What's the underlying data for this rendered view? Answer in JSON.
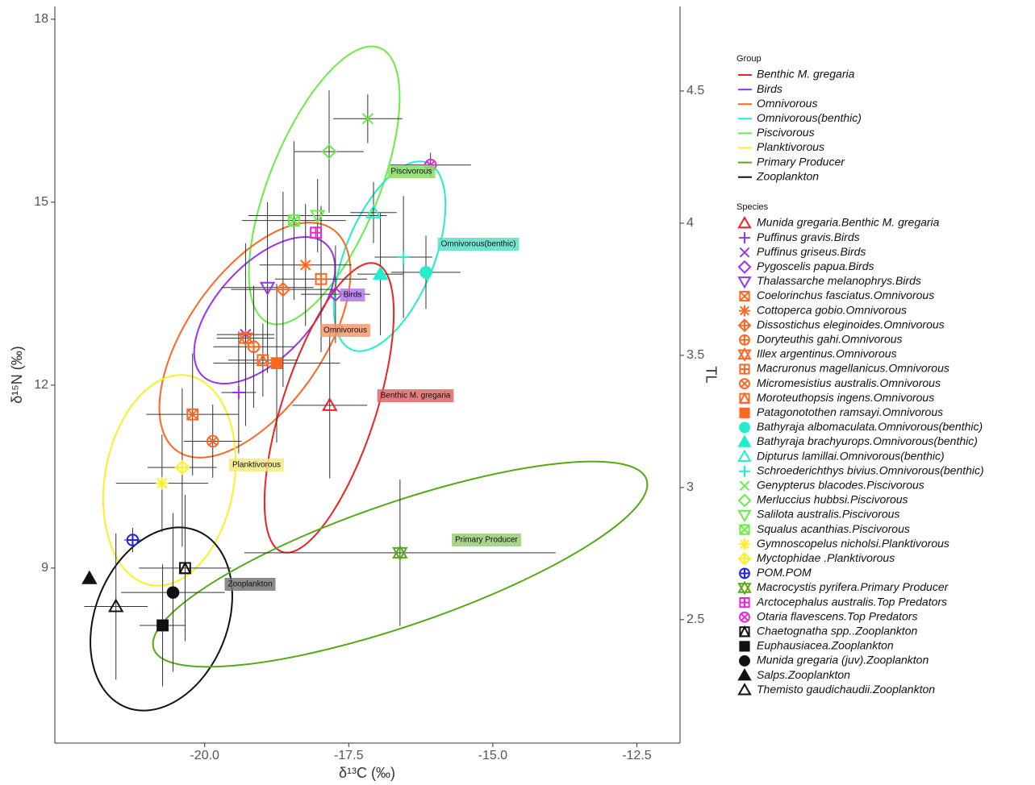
{
  "chart_data": {
    "type": "scatter",
    "x_label": "δ¹³C (‰)",
    "y_label": "δ¹⁵N (‰)",
    "y2_label": "TL",
    "xlim": [
      -22.6,
      -11.75
    ],
    "ylim": [
      6.13,
      18.21
    ],
    "y2lim": [
      2.033,
      4.82
    ],
    "xticks": [
      {
        "value": -20,
        "label": "-20.0"
      },
      {
        "value": -17.5,
        "label": "-17.5"
      },
      {
        "value": -15,
        "label": "-15.0"
      },
      {
        "value": -12.5,
        "label": "-12.5"
      }
    ],
    "yticks": [
      9,
      12,
      15,
      18
    ],
    "y2ticks": [
      2.5,
      3,
      3.5,
      4,
      4.5
    ],
    "group_legend_title": "Group",
    "groups": [
      {
        "name": "Benthic M. gregaria",
        "color": "#ee2222"
      },
      {
        "name": "Birds",
        "color": "#9933ee"
      },
      {
        "name": "Omnivorous",
        "color": "#ff6622"
      },
      {
        "name": "Omnivorous(benthic)",
        "color": "#22eecc"
      },
      {
        "name": "Piscivorous",
        "color": "#66ee44"
      },
      {
        "name": "Planktivorous",
        "color": "#ffee22"
      },
      {
        "name": "Primary Producer",
        "color": "#55aa11"
      },
      {
        "name": "Zooplankton",
        "color": "#111111"
      }
    ],
    "group_labels": [
      "Piscivorous",
      "Omnivorous(benthic)",
      "Birds",
      "Omnivorous",
      "Benthic M. gregaria",
      "Planktivorous",
      "Primary Producer",
      "Zooplankton"
    ],
    "species_legend_title": "Species",
    "series": [
      {
        "name": "Munida gregaria.Benthic M. gregaria",
        "color": "#ee2222",
        "shape": "tri",
        "x": -17.83,
        "y": 11.67,
        "xerr": 0.65,
        "yerr": 1.2
      },
      {
        "name": "Puffinus gravis.Birds",
        "color": "#9933ee",
        "shape": "plus",
        "x": -19.41,
        "y": 11.88,
        "xerr": 0.3,
        "yerr": 1.0
      },
      {
        "name": "Puffinus griseus.Birds",
        "color": "#9933ee",
        "shape": "cross",
        "x": -19.29,
        "y": 12.83,
        "xerr": 0.5,
        "yerr": 1.5
      },
      {
        "name": "Pygoscelis papua.Birds",
        "color": "#9933ee",
        "shape": "diamond",
        "x": -17.73,
        "y": 13.49,
        "xerr": 0.6,
        "yerr": 0.8
      },
      {
        "name": "Thalassarche melanophrys.Birds",
        "color": "#9933ee",
        "shape": "tridown",
        "x": -18.91,
        "y": 13.6,
        "xerr": 0.8,
        "yerr": 1.4
      },
      {
        "name": "Coelorinchus fasciatus.Omnivorous",
        "color": "#ff6622",
        "shape": "squarecross",
        "x": -20.21,
        "y": 11.52,
        "xerr": 0.8,
        "yerr": 1.0
      },
      {
        "name": "Cottoperca gobio.Omnivorous",
        "color": "#ff6622",
        "shape": "asterisk",
        "x": -18.25,
        "y": 13.97,
        "xerr": 0.8,
        "yerr": 1.0
      },
      {
        "name": "Dissostichus eleginoides.Omnivorous",
        "color": "#ff6622",
        "shape": "diamondplus",
        "x": -18.64,
        "y": 13.57,
        "xerr": 0.9,
        "yerr": 1.6
      },
      {
        "name": "Doryteuthis gahi.Omnivorous",
        "color": "#ff6622",
        "shape": "circleplus",
        "x": -19.15,
        "y": 12.63,
        "xerr": 0.7,
        "yerr": 1.0
      },
      {
        "name": "Illex argentinus.Omnivorous",
        "color": "#ff6622",
        "shape": "star",
        "x": -19.29,
        "y": 12.77,
        "xerr": 0.5,
        "yerr": 0.8
      },
      {
        "name": "Macruronus magellanicus.Omnivorous",
        "color": "#ff6622",
        "shape": "squareplus",
        "x": -17.98,
        "y": 13.74,
        "xerr": 0.8,
        "yerr": 1.2
      },
      {
        "name": "Micromesistius australis.Omnivorous",
        "color": "#ff6622",
        "shape": "circlecross",
        "x": -19.86,
        "y": 11.08,
        "xerr": 0.5,
        "yerr": 0.6
      },
      {
        "name": "Moroteuthopsis ingens.Omnivorous",
        "color": "#ff6622",
        "shape": "squaretri",
        "x": -18.99,
        "y": 12.41,
        "xerr": 0.6,
        "yerr": 0.6
      },
      {
        "name": "Patagonotothen ramsayi.Omnivorous",
        "color": "#ff6622",
        "shape": "squarefill",
        "x": -18.75,
        "y": 12.36,
        "xerr": 1.1,
        "yerr": 1.3
      },
      {
        "name": "Bathyraja albomaculata.Omnivorous(benthic)",
        "color": "#22eecc",
        "shape": "circlefill",
        "x": -16.16,
        "y": 13.85,
        "xerr": 0.6,
        "yerr": 0.6
      },
      {
        "name": "Bathyraja brachyurops.Omnivorous(benthic)",
        "color": "#22eecc",
        "shape": "trifill",
        "x": -16.95,
        "y": 13.82,
        "xerr": 0.4,
        "yerr": 1.0
      },
      {
        "name": "Dipturus lamillai.Omnivorous(benthic)",
        "color": "#22eecc",
        "shape": "tri",
        "x": -17.07,
        "y": 14.83,
        "xerr": 0.4,
        "yerr": 0.5
      },
      {
        "name": "Schroederichthys bivius.Omnivorous(benthic)",
        "color": "#22eecc",
        "shape": "plus",
        "x": -16.55,
        "y": 14.1,
        "xerr": 0.5,
        "yerr": 1.0
      },
      {
        "name": "Genypterus blacodes.Piscivorous",
        "color": "#66ee44",
        "shape": "cross",
        "x": -17.17,
        "y": 16.37,
        "xerr": 0.6,
        "yerr": 0.4
      },
      {
        "name": "Merluccius hubbsi.Piscivorous",
        "color": "#66ee44",
        "shape": "diamond",
        "x": -17.84,
        "y": 15.83,
        "xerr": 0.6,
        "yerr": 1.0
      },
      {
        "name": "Salilota australis.Piscivorous",
        "color": "#66ee44",
        "shape": "tridown",
        "x": -18.04,
        "y": 14.78,
        "xerr": 1.2,
        "yerr": 0.6
      },
      {
        "name": "Squalus acanthias.Piscivorous",
        "color": "#66ee44",
        "shape": "squarecross",
        "x": -18.45,
        "y": 14.7,
        "xerr": 0.9,
        "yerr": 1.3
      },
      {
        "name": "Gymnoscopelus nicholsi.Planktivorous",
        "color": "#ffee22",
        "shape": "asterisk",
        "x": -20.74,
        "y": 10.39,
        "xerr": 0.8,
        "yerr": 0.8
      },
      {
        "name": "Myctophidae .Planktivorous",
        "color": "#ffee22",
        "shape": "diamondplus",
        "x": -20.39,
        "y": 10.65,
        "xerr": 0.6,
        "yerr": 1.3
      },
      {
        "name": "POM.POM",
        "color": "#2222ee",
        "shape": "circleplus",
        "x": -21.25,
        "y": 9.46,
        "xerr": 0.15,
        "yerr": 0.2
      },
      {
        "name": "Macrocystis pyrifera.Primary Producer",
        "color": "#55aa11",
        "shape": "star",
        "x": -16.61,
        "y": 9.25,
        "xerr": 2.7,
        "yerr": 1.2
      },
      {
        "name": "Arctocephalus australis.Top Predators",
        "color": "#ee22dd",
        "shape": "squareplus",
        "x": -18.07,
        "y": 14.5,
        "xerr": 0.1,
        "yerr": 0.1
      },
      {
        "name": "Otaria flavescens.Top Predators",
        "color": "#ee22dd",
        "shape": "circlecross",
        "x": -16.08,
        "y": 15.61,
        "xerr": 0.7,
        "yerr": 0.2
      },
      {
        "name": "Chaetognatha spp..Zooplankton",
        "color": "#111111",
        "shape": "squaretri",
        "x": -20.34,
        "y": 9.0,
        "xerr": 0.8,
        "yerr": 1.2
      },
      {
        "name": "Euphausiacea.Zooplankton",
        "color": "#111111",
        "shape": "squarefill",
        "x": -20.73,
        "y": 8.06,
        "xerr": 0.4,
        "yerr": 1.0
      },
      {
        "name": "Munida gregaria (juv).Zooplankton",
        "color": "#111111",
        "shape": "circlefill",
        "x": -20.55,
        "y": 8.6,
        "xerr": 0.9,
        "yerr": 1.3
      },
      {
        "name": "Salps.Zooplankton",
        "color": "#111111",
        "shape": "trifill",
        "x": -22.0,
        "y": 8.83,
        "xerr": 0,
        "yerr": 0
      },
      {
        "name": "Themisto gaudichaudii.Zooplankton",
        "color": "#111111",
        "shape": "tri",
        "x": -21.54,
        "y": 8.37,
        "xerr": 0.55,
        "yerr": 1.2
      }
    ]
  }
}
